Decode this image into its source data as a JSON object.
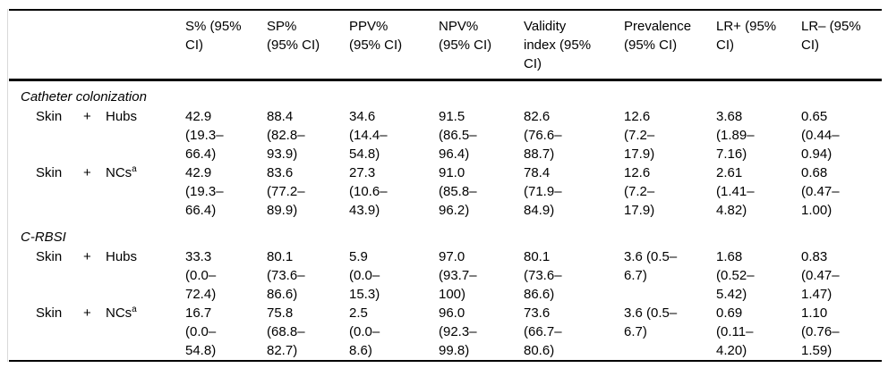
{
  "table": {
    "columns": [
      "S% (95%\nCI)",
      "SP%\n(95% CI)",
      "PPV%\n(95% CI)",
      "NPV%\n(95% CI)",
      "Validity\nindex (95%\nCI)",
      "Prevalence\n(95% CI)",
      "LR+ (95%\nCI)",
      "LR– (95%\nCI)"
    ],
    "sections": [
      {
        "title": "Catheter colonization",
        "rows": [
          {
            "label": [
              "Skin",
              "+",
              "Hubs",
              ""
            ],
            "values": [
              "42.9\n(19.3–\n66.4)",
              "88.4\n(82.8–\n93.9)",
              "34.6\n(14.4–\n54.8)",
              "91.5\n(86.5–\n96.4)",
              "82.6\n(76.6–\n88.7)",
              "12.6\n(7.2–\n17.9)",
              "3.68\n(1.89–\n7.16)",
              "0.65\n(0.44–\n0.94)"
            ]
          },
          {
            "label": [
              "Skin",
              "+",
              "NCs",
              "a"
            ],
            "values": [
              "42.9\n(19.3–\n66.4)",
              "83.6\n(77.2–\n89.9)",
              "27.3\n(10.6–\n43.9)",
              "91.0\n(85.8–\n96.2)",
              "78.4\n(71.9–\n84.9)",
              "12.6\n(7.2–\n17.9)",
              "2.61\n(1.41–\n4.82)",
              "0.68\n(0.47–\n1.00)"
            ]
          }
        ]
      },
      {
        "title": "C-RBSI",
        "rows": [
          {
            "label": [
              "Skin",
              "+",
              "Hubs",
              ""
            ],
            "values": [
              "33.3\n(0.0–\n72.4)",
              "80.1\n(73.6–\n86.6)",
              "5.9\n(0.0–\n15.3)",
              "97.0\n(93.7–\n100)",
              "80.1\n(73.6–\n86.6)",
              "3.6 (0.5–\n6.7)",
              "1.68\n(0.52–\n5.42)",
              "0.83\n(0.47–\n1.47)"
            ]
          },
          {
            "label": [
              "Skin",
              "+",
              "NCs",
              "a"
            ],
            "values": [
              "16.7\n(0.0–\n54.8)",
              "75.8\n(68.8–\n82.7)",
              "2.5\n(0.0–\n8.6)",
              "96.0\n(92.3–\n99.8)",
              "73.6\n(66.7–\n80.6)",
              "3.6 (0.5–\n6.7)",
              "0.69\n(0.11–\n4.20)",
              "1.10\n(0.76–\n1.59)"
            ]
          }
        ]
      }
    ]
  },
  "colors": {
    "text": "#000000",
    "rule": "#000000",
    "background": "#ffffff"
  }
}
